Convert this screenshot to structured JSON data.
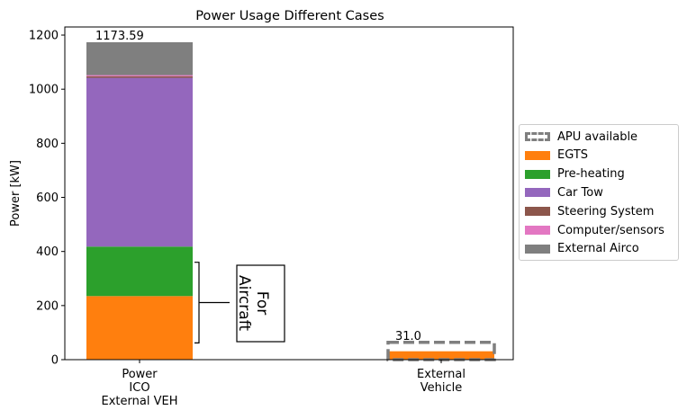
{
  "chart_data": {
    "type": "bar",
    "title": "Power Usage Different Cases",
    "ylabel": "Power [kW]",
    "xlabel": "",
    "ylim": [
      0,
      1230
    ],
    "yticks": [
      0,
      200,
      400,
      600,
      800,
      1000,
      1200
    ],
    "categories": [
      "Power\nICO\nExternal VEH",
      "External\nVehicle"
    ],
    "series": [
      {
        "name": "EGTS",
        "color": "#ff7f0e",
        "values": [
          235,
          31
        ]
      },
      {
        "name": "Pre-heating",
        "color": "#2ca02c",
        "values": [
          183,
          0
        ]
      },
      {
        "name": "Car Tow",
        "color": "#9467bd",
        "values": [
          624,
          0
        ]
      },
      {
        "name": "Steering System",
        "color": "#8c564b",
        "values": [
          6,
          0
        ]
      },
      {
        "name": "Computer/sensors",
        "color": "#e377c2",
        "values": [
          4,
          0
        ]
      },
      {
        "name": "External Airco",
        "color": "#7f7f7f",
        "values": [
          121.59,
          0
        ]
      }
    ],
    "apu": {
      "name": "APU available",
      "color": "#7f7f7f",
      "values": [
        null,
        64
      ]
    },
    "bar_totals": [
      "1173.59",
      "31.0"
    ],
    "annotation": {
      "text": "For\nAircraft",
      "bracket_range": [
        62,
        360
      ]
    },
    "legend": "center-right",
    "grid": false
  }
}
